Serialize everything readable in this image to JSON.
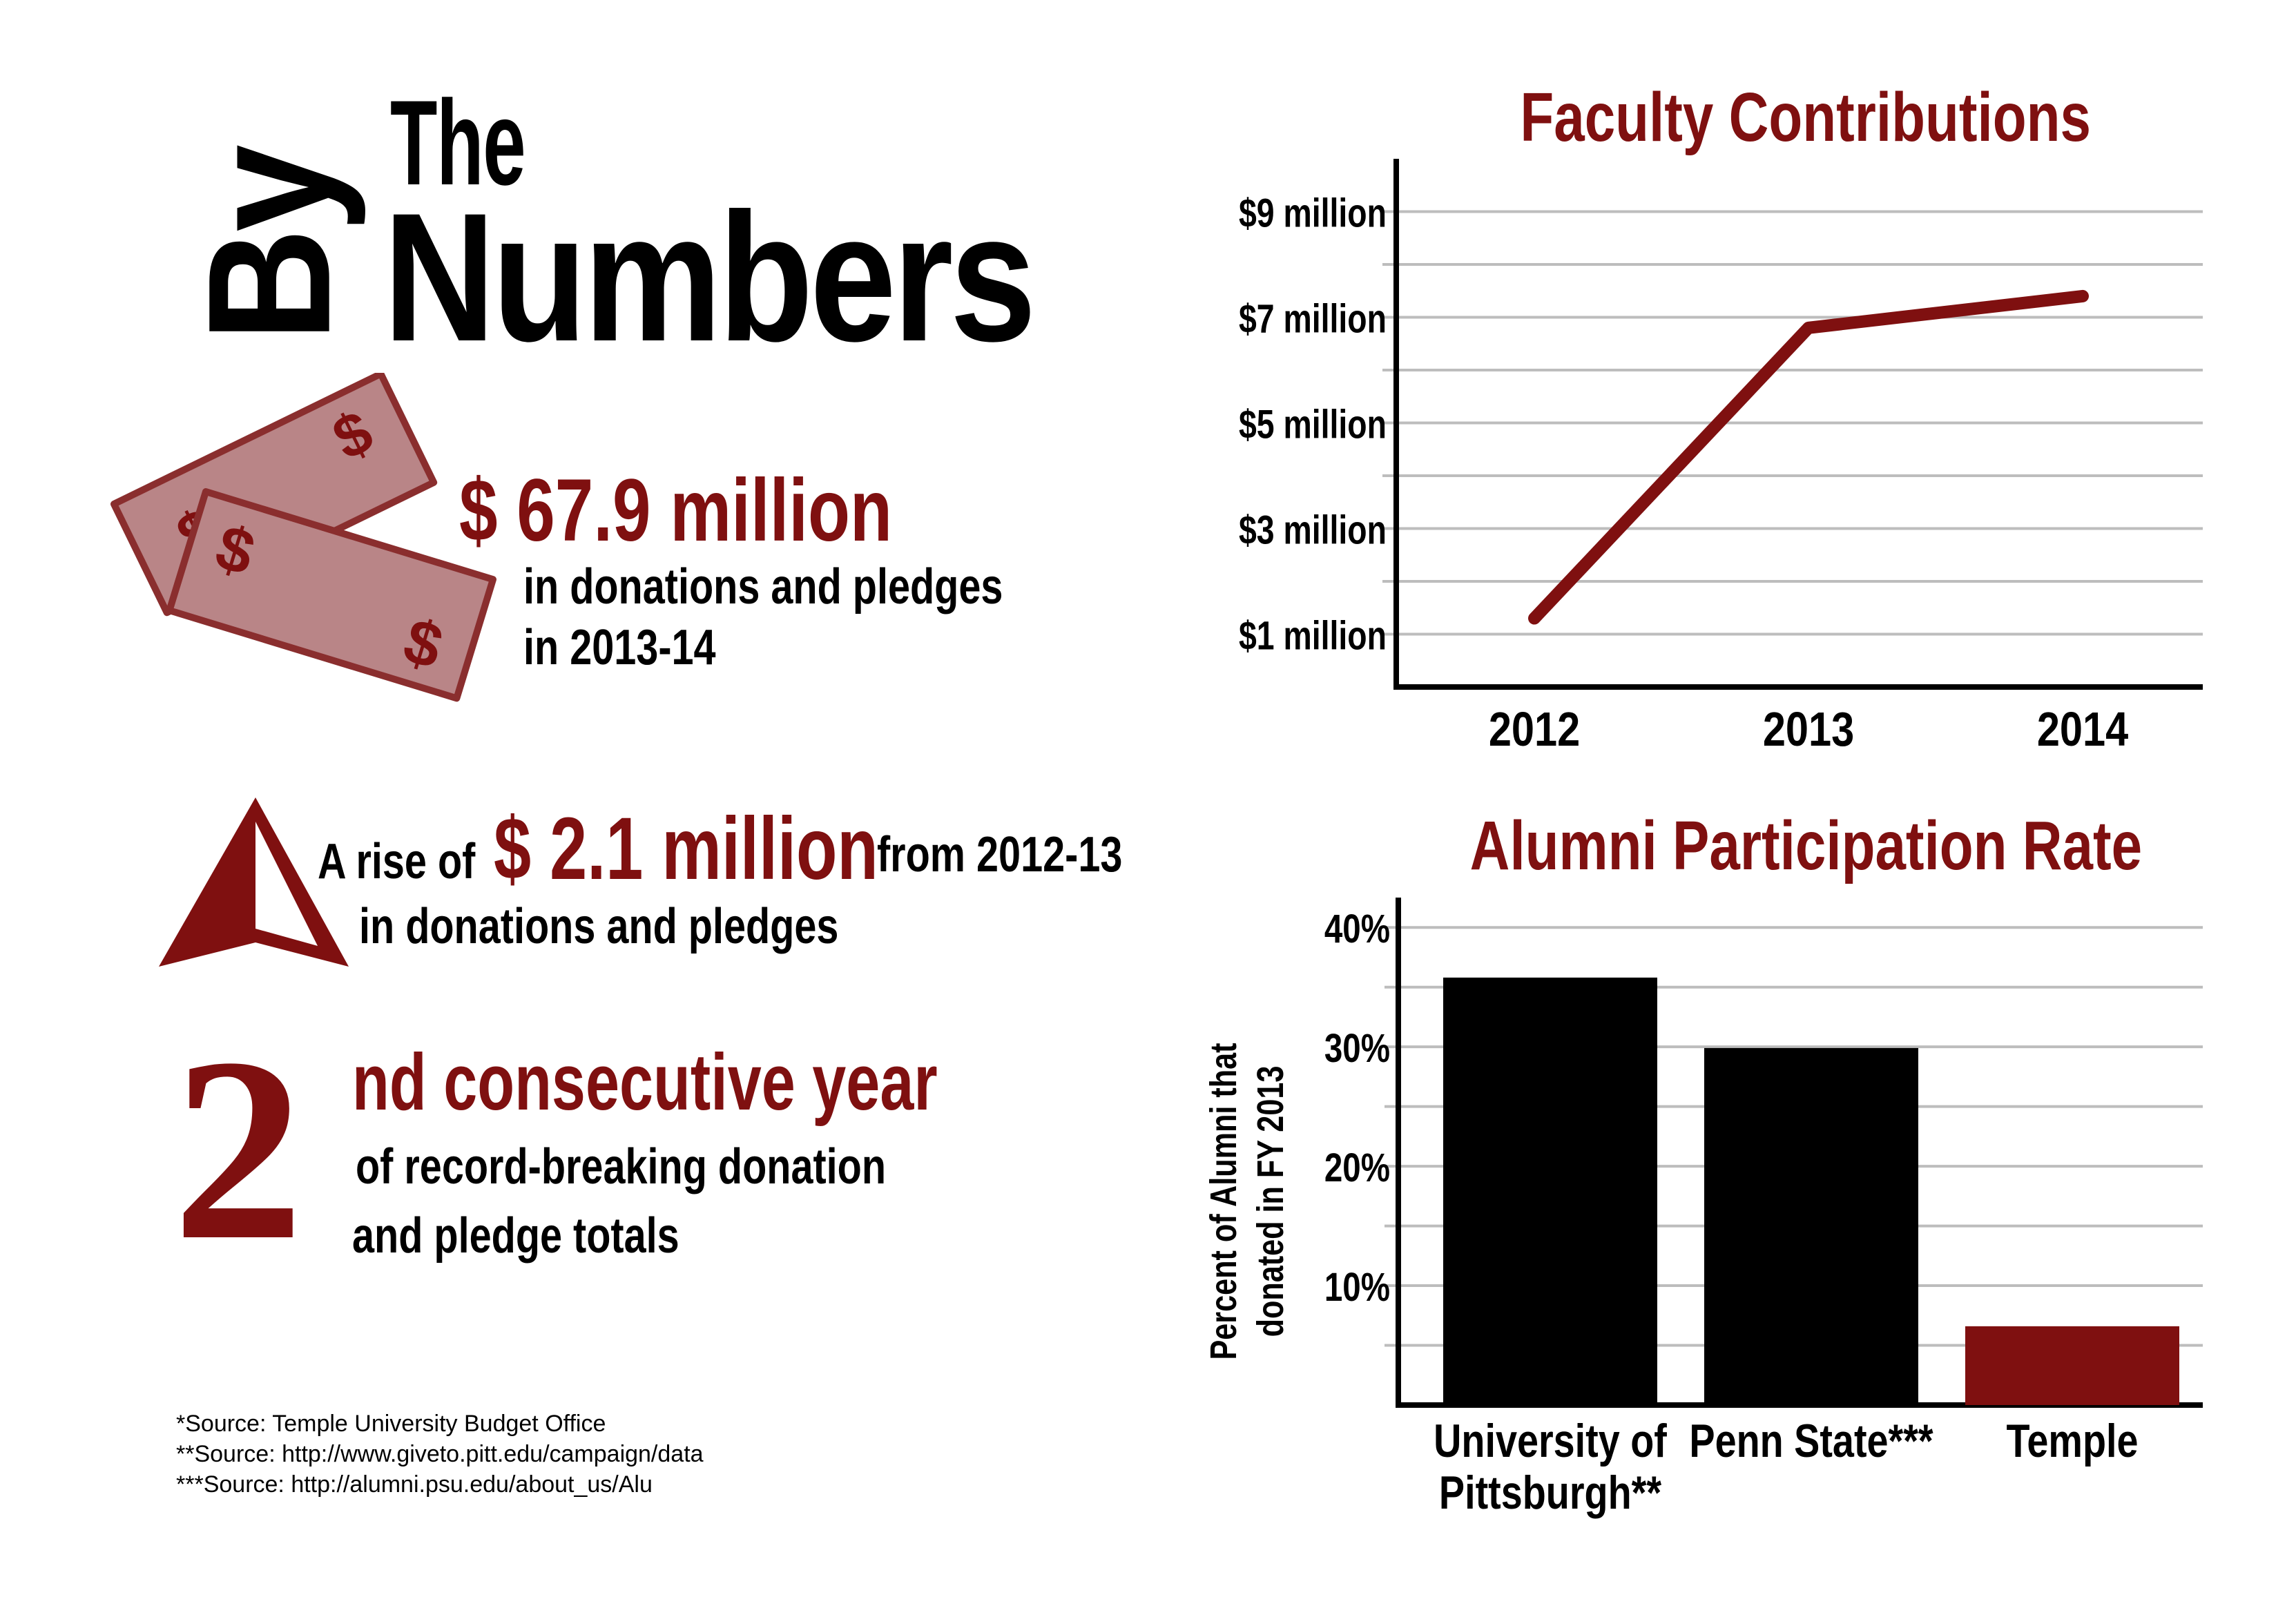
{
  "colors": {
    "accent": "#7f1010",
    "money": "#b98587",
    "money_edge": "#8a2e2e",
    "ink": "#000000",
    "grid": "#bdbdbd"
  },
  "headline": {
    "by": "By",
    "the": "The",
    "numbers": "Numbers"
  },
  "stat_donations": {
    "amount": "$ 67.9 million",
    "line1": "in donations and pledges",
    "line2": "in 2013-14",
    "icon": "money-bills-icon",
    "bill_symbol": "$"
  },
  "stat_rise": {
    "prefix": "A rise of",
    "amount": "$ 2.1 million",
    "suffix": "from 2012-13",
    "line2": "in donations and pledges",
    "icon": "up-arrow-icon"
  },
  "stat_consecutive": {
    "number": "2",
    "headline": "nd consecutive year",
    "line1": "of record-breaking donation",
    "line2": "and pledge totals"
  },
  "sources": [
    "*Source: Temple University Budget Office",
    "**Source: http://www.giveto.pitt.edu/campaign/data",
    "***Source: http://alumni.psu.edu/about_us/Alu"
  ],
  "chart_data": [
    {
      "type": "line",
      "title": "Faculty Contributions",
      "x": [
        "2012",
        "2013",
        "2014"
      ],
      "values": [
        1.3,
        6.8,
        7.4
      ],
      "y_unit": "million dollars",
      "ylim": [
        0,
        10
      ],
      "y_ticks": [
        1,
        3,
        5,
        7,
        9
      ],
      "y_tick_labels": [
        "$1 million",
        "$3 million",
        "$5 million",
        "$7 million",
        "$9 million"
      ],
      "grid_minor_step": 1,
      "grid": true,
      "color": "#7f1010"
    },
    {
      "type": "bar",
      "title": "Alumni Participation Rate",
      "ylabel": "Percent of Alumni that donated in FY 2013",
      "categories": [
        "University of Pittsburgh**",
        "Penn State***",
        "Temple"
      ],
      "category_lines": [
        [
          "University of",
          "Pittsburgh**"
        ],
        [
          "Penn State***"
        ],
        [
          "Temple"
        ]
      ],
      "values": [
        35.8,
        29.9,
        6.6
      ],
      "bar_colors": [
        "#000000",
        "#000000",
        "#7f1010"
      ],
      "ylim": [
        0,
        42.5
      ],
      "y_ticks": [
        10,
        20,
        30,
        40
      ],
      "y_tick_labels": [
        "10%",
        "20%",
        "30%",
        "40%"
      ],
      "grid_minor_step": 5,
      "grid": true
    }
  ]
}
